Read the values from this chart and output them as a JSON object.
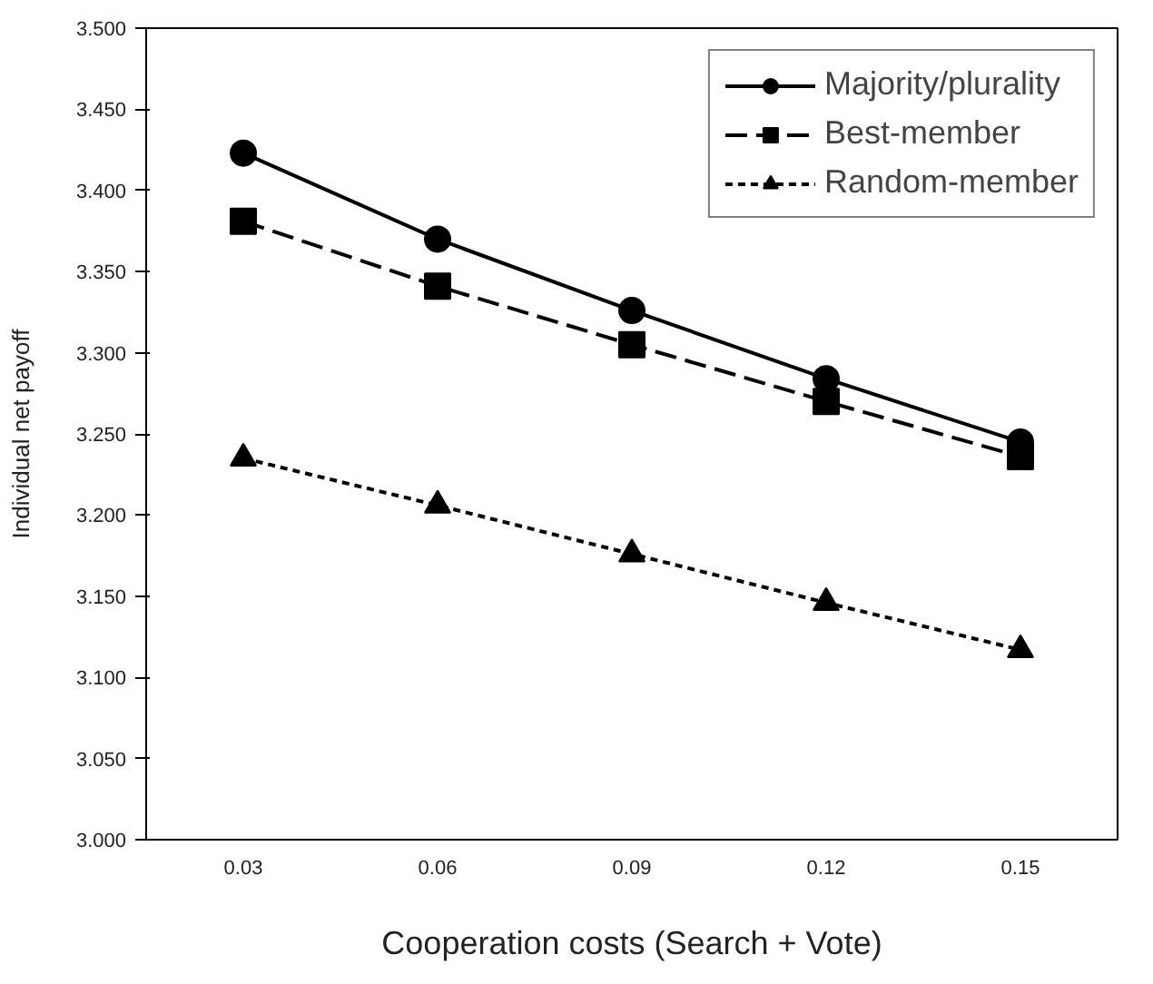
{
  "chart_data": {
    "type": "line",
    "xlabel": "Cooperation costs (Search + Vote)",
    "ylabel": "Individual net payoff",
    "categories": [
      "0.03",
      "0.06",
      "0.09",
      "0.12",
      "0.15"
    ],
    "series": [
      {
        "name": "Majority/plurality",
        "color": "#000000",
        "marker": "circle",
        "line_style": "solid",
        "values": [
          3.423,
          3.37,
          3.326,
          3.284,
          3.245
        ]
      },
      {
        "name": "Best-member",
        "color": "#000000",
        "marker": "square",
        "line_style": "dashed",
        "values": [
          3.381,
          3.341,
          3.305,
          3.27,
          3.236
        ]
      },
      {
        "name": "Random-member",
        "color": "#000000",
        "marker": "triangle",
        "line_style": "dotted",
        "values": [
          3.235,
          3.206,
          3.176,
          3.146,
          3.117
        ]
      }
    ],
    "ylim": [
      3.0,
      3.5
    ],
    "yticks": [
      {
        "value": 3.0,
        "label": "3.000"
      },
      {
        "value": 3.05,
        "label": "3.050"
      },
      {
        "value": 3.1,
        "label": "3.100"
      },
      {
        "value": 3.15,
        "label": "3.150"
      },
      {
        "value": 3.2,
        "label": "3.200"
      },
      {
        "value": 3.25,
        "label": "3.250"
      },
      {
        "value": 3.3,
        "label": "3.300"
      },
      {
        "value": 3.35,
        "label": "3.350"
      },
      {
        "value": 3.4,
        "label": "3.400"
      },
      {
        "value": 3.45,
        "label": "3.450"
      },
      {
        "value": 3.5,
        "label": "3.500"
      }
    ],
    "grid": false,
    "legend": "top right"
  }
}
